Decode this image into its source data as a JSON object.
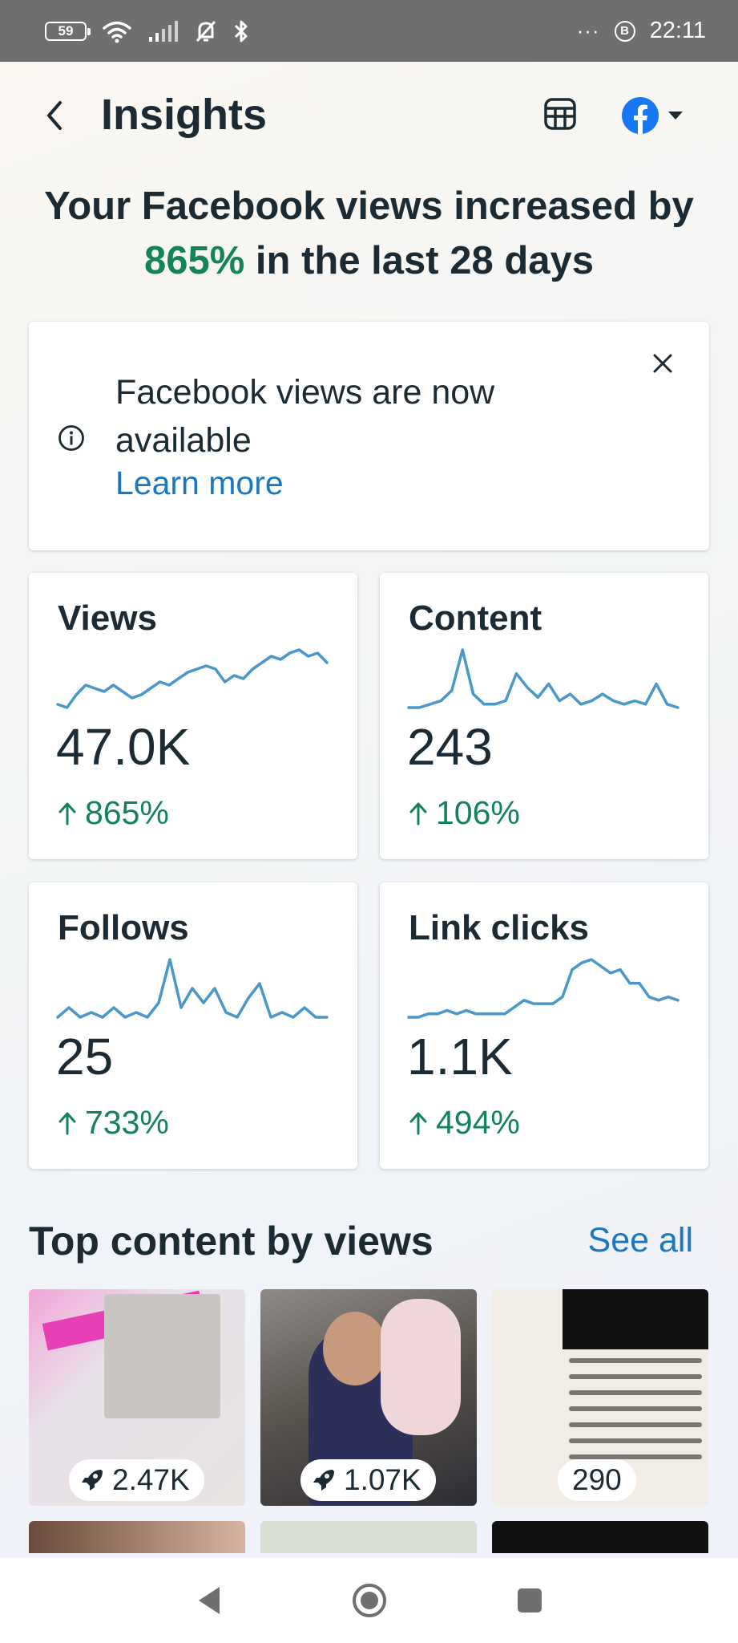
{
  "status_bar": {
    "battery": "59",
    "time": "22:11",
    "dots": "···",
    "b_icon": "B"
  },
  "header": {
    "title": "Insights"
  },
  "headline": {
    "prefix": "Your Facebook views increased by",
    "percent": "865%",
    "suffix": "in the last 28 days"
  },
  "notice": {
    "text": "Facebook views are now available",
    "link": "Learn more"
  },
  "metrics": [
    {
      "label": "Views",
      "value": "47.0K",
      "change": "865%",
      "trend": [
        2,
        1,
        5,
        8,
        7,
        6,
        8,
        6,
        4,
        5,
        7,
        9,
        8,
        10,
        12,
        13,
        14,
        13,
        9,
        11,
        10,
        13,
        15,
        17,
        16,
        18,
        19,
        17,
        18,
        15
      ]
    },
    {
      "label": "Content",
      "value": "243",
      "change": "106%",
      "trend": [
        1,
        1,
        2,
        3,
        6,
        18,
        5,
        2,
        2,
        3,
        11,
        7,
        4,
        8,
        3,
        5,
        2,
        3,
        5,
        3,
        2,
        3,
        2,
        8,
        2,
        1
      ]
    },
    {
      "label": "Follows",
      "value": "25",
      "change": "733%",
      "trend": [
        0,
        2,
        0,
        1,
        0,
        2,
        0,
        1,
        0,
        3,
        12,
        2,
        6,
        3,
        6,
        1,
        0,
        4,
        7,
        0,
        1,
        0,
        2,
        0,
        0
      ]
    },
    {
      "label": "Link clicks",
      "value": "1.1K",
      "change": "494%",
      "trend": [
        2,
        2,
        3,
        3,
        4,
        3,
        4,
        3,
        3,
        3,
        3,
        5,
        7,
        6,
        6,
        6,
        8,
        16,
        18,
        19,
        17,
        15,
        16,
        12,
        12,
        8,
        7,
        8,
        7
      ]
    }
  ],
  "top_content": {
    "title": "Top content by views",
    "see_all": "See all",
    "items": [
      {
        "value": "2.47K"
      },
      {
        "value": "1.07K"
      },
      {
        "value": "290"
      }
    ]
  },
  "colors": {
    "accent_green": "#13835c",
    "link_blue": "#1a77c0",
    "spark_blue": "#4a97c9",
    "facebook_blue": "#1877f2"
  }
}
